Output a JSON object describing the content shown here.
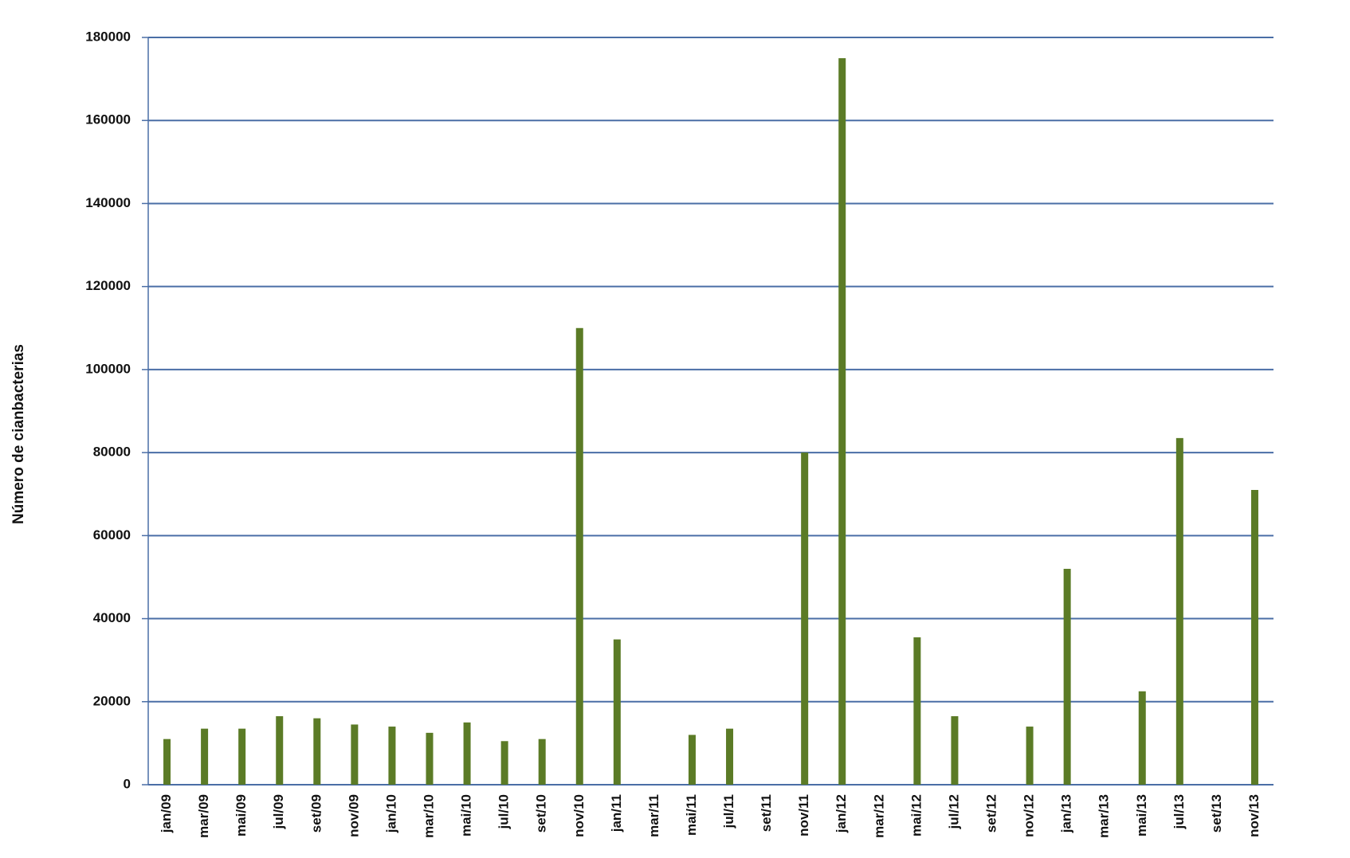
{
  "chart_data": {
    "type": "bar",
    "y_label": "Número de cianbacterias",
    "categories": [
      "jan/09",
      "mar/09",
      "mai/09",
      "jul/09",
      "set/09",
      "nov/09",
      "jan/10",
      "mar/10",
      "mai/10",
      "jul/10",
      "set/10",
      "nov/10",
      "jan/11",
      "mar/11",
      "mai/11",
      "jul/11",
      "set/11",
      "nov/11",
      "jan/12",
      "mar/12",
      "mai/12",
      "jul/12",
      "set/12",
      "nov/12",
      "jan/13",
      "mar/13",
      "mai/13",
      "jul/13",
      "set/13",
      "nov/13"
    ],
    "values": [
      11000,
      13500,
      13500,
      16500,
      16000,
      14500,
      14000,
      12500,
      15000,
      10500,
      11000,
      110000,
      35000,
      null,
      12000,
      13500,
      null,
      80000,
      175000,
      null,
      35500,
      16500,
      null,
      14000,
      52000,
      null,
      22500,
      83500,
      null,
      71000
    ],
    "color": "#5b7b26",
    "grid_color": "#4a6ea6",
    "ylim": [
      0,
      180000
    ],
    "yticks": [
      0,
      20000,
      40000,
      60000,
      80000,
      100000,
      120000,
      140000,
      160000,
      180000
    ],
    "grid": true
  }
}
